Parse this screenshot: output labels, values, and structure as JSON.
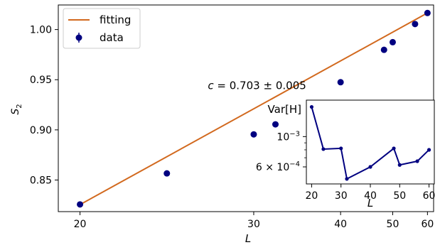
{
  "chart_data": [
    {
      "type": "scatter",
      "x_scale": "reciprocal",
      "xlabel_main": "L",
      "xlabel_sub": "",
      "ylabel_main": "S",
      "ylabel_sub": "2",
      "xticks": [
        20,
        30,
        40,
        50,
        60
      ],
      "yticks": [
        0.85,
        0.9,
        0.95,
        1.0
      ],
      "ytick_labels": [
        "0.85",
        "0.90",
        "0.95",
        "1.00"
      ],
      "xlim": [
        19.2,
        62.2
      ],
      "ylim": [
        0.8185,
        1.0245
      ],
      "grid": false,
      "legend_position": "top-left",
      "annotation": {
        "prefix": "c",
        "value": "0.703",
        "pm": "±",
        "error": "0.005",
        "L": 26.5,
        "S2": 0.9405
      },
      "series": [
        {
          "name": "fitting",
          "kind": "line",
          "color": "#d2691e",
          "x": [
            20,
            60
          ],
          "y": [
            0.8255,
            1.0165
          ]
        },
        {
          "name": "data",
          "kind": "errorbar-points",
          "color": "#000080",
          "x": [
            20,
            24,
            30,
            32,
            40,
            48,
            50,
            56,
            60
          ],
          "y": [
            0.8257,
            0.8566,
            0.8955,
            0.9055,
            0.9475,
            0.9798,
            0.9874,
            1.0055,
            1.0165
          ]
        }
      ]
    },
    {
      "type": "line",
      "title": "inset",
      "y_scale": "log",
      "ylabel": "Var[H]",
      "xlabel": "L",
      "xticks": [
        20,
        30,
        40,
        50,
        60
      ],
      "xlim": [
        18.2,
        61.8
      ],
      "ylim": [
        0.00045,
        0.00185
      ],
      "yticks": [
        0.001,
        0.0006
      ],
      "ytick_labels": [
        {
          "base": "10",
          "exp": "−3"
        },
        {
          "base": "6 × 10",
          "exp": "−4"
        }
      ],
      "series": [
        {
          "name": "",
          "color": "#000080",
          "x": [
            20,
            24,
            30,
            32,
            40,
            48,
            50,
            56,
            60
          ],
          "y": [
            0.00165,
            0.00081,
            0.00082,
            0.00049,
            0.0006,
            0.00082,
            0.00062,
            0.00066,
            0.0008
          ]
        }
      ]
    }
  ]
}
